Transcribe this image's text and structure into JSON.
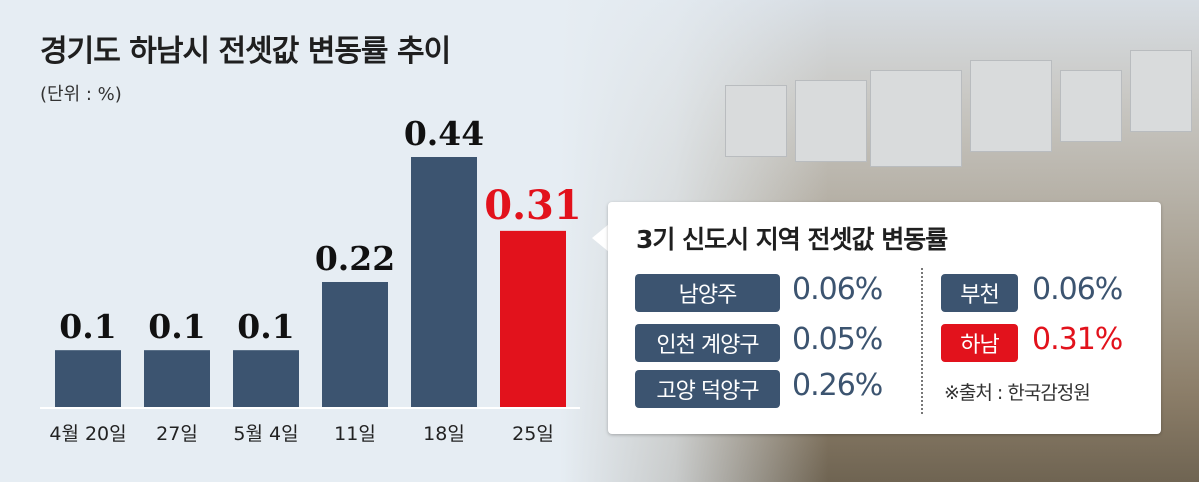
{
  "title": "경기도 하남시 전셋값 변동률 추이",
  "unit": "(단위 : %)",
  "chart_data": {
    "type": "bar",
    "categories": [
      "4월 20일",
      "27일",
      "5월 4일",
      "11일",
      "18일",
      "25일"
    ],
    "values": [
      0.1,
      0.1,
      0.1,
      0.22,
      0.44,
      0.31
    ],
    "value_labels": [
      "0.1",
      "0.1",
      "0.1",
      "0.22",
      "0.44",
      "0.31"
    ],
    "highlight_index": 5,
    "colors": {
      "bar": "#3c5470",
      "highlight": "#e2121c",
      "axis": "#ffffff"
    },
    "ylim": [
      0,
      0.5
    ],
    "grid": false,
    "title": "경기도 하남시 전셋값 변동률 추이",
    "xlabel": "",
    "ylabel": ""
  },
  "panel": {
    "title": "3기 신도시 지역 전셋값 변동률",
    "items_left": [
      {
        "label": "남양주",
        "value": "0.06%"
      },
      {
        "label": "인천 계양구",
        "value": "0.05%"
      },
      {
        "label": "고양 덕양구",
        "value": "0.26%"
      }
    ],
    "items_right": [
      {
        "label": "부천",
        "value": "0.06%"
      },
      {
        "label": "하남",
        "value": "0.31%",
        "highlight": true
      }
    ],
    "source": "※출처 : 한국감정원"
  }
}
